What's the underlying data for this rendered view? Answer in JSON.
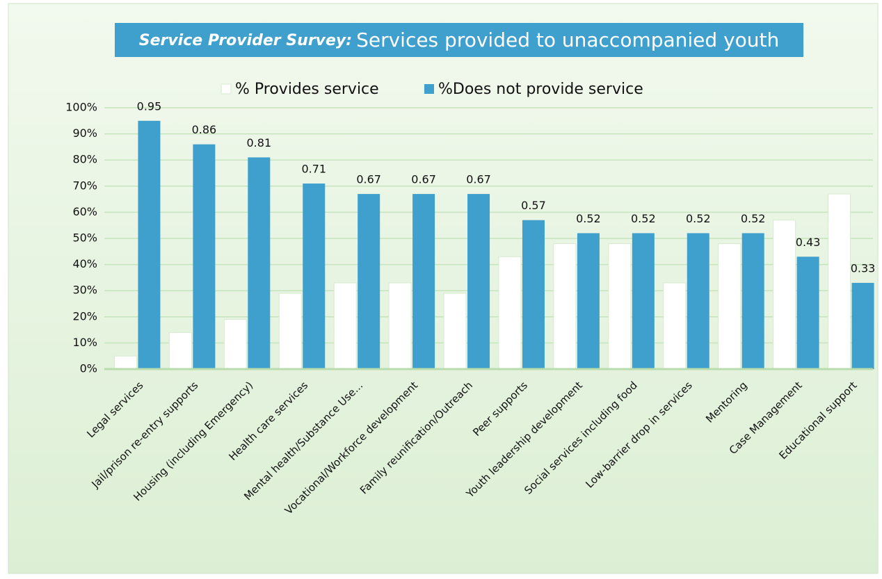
{
  "chart_data": {
    "type": "bar",
    "title_lead": "Service Provider Survey:",
    "title": "Services provided to unaccompanied youth",
    "categories": [
      "Legal services",
      "Jail/prison re-entry supports",
      "Housing (including Emergency)",
      "Health care services",
      "Mental health/Substance Use...",
      "Vocational/Workforce development",
      "Family reunification/Outreach",
      "Peer supports",
      "Youth leadership development",
      "Social services including food",
      "Low-barrier drop in services",
      "Mentoring",
      "Case Management",
      "Educational support"
    ],
    "series": [
      {
        "name": "% Provides service",
        "color": "#ffffff",
        "values": [
          0.05,
          0.14,
          0.19,
          0.29,
          0.33,
          0.33,
          0.29,
          0.43,
          0.48,
          0.48,
          0.33,
          0.48,
          0.57,
          0.67
        ]
      },
      {
        "name": "%Does not provide service",
        "color": "#3fa0cd",
        "values": [
          0.95,
          0.86,
          0.81,
          0.71,
          0.67,
          0.67,
          0.67,
          0.57,
          0.52,
          0.52,
          0.52,
          0.52,
          0.43,
          0.33
        ],
        "data_labels": true
      }
    ],
    "ylim": [
      0,
      1
    ],
    "yticks": [
      {
        "value": 0,
        "label": "0%"
      },
      {
        "value": 0.1,
        "label": "10%"
      },
      {
        "value": 0.2,
        "label": "20%"
      },
      {
        "value": 0.3,
        "label": "30%"
      },
      {
        "value": 0.4,
        "label": "40%"
      },
      {
        "value": 0.5,
        "label": "50%"
      },
      {
        "value": 0.6,
        "label": "60%"
      },
      {
        "value": 0.7,
        "label": "70%"
      },
      {
        "value": 0.8,
        "label": "80%"
      },
      {
        "value": 0.9,
        "label": "90%"
      },
      {
        "value": 1,
        "label": "100%"
      }
    ],
    "grid": true,
    "legend": "top"
  }
}
